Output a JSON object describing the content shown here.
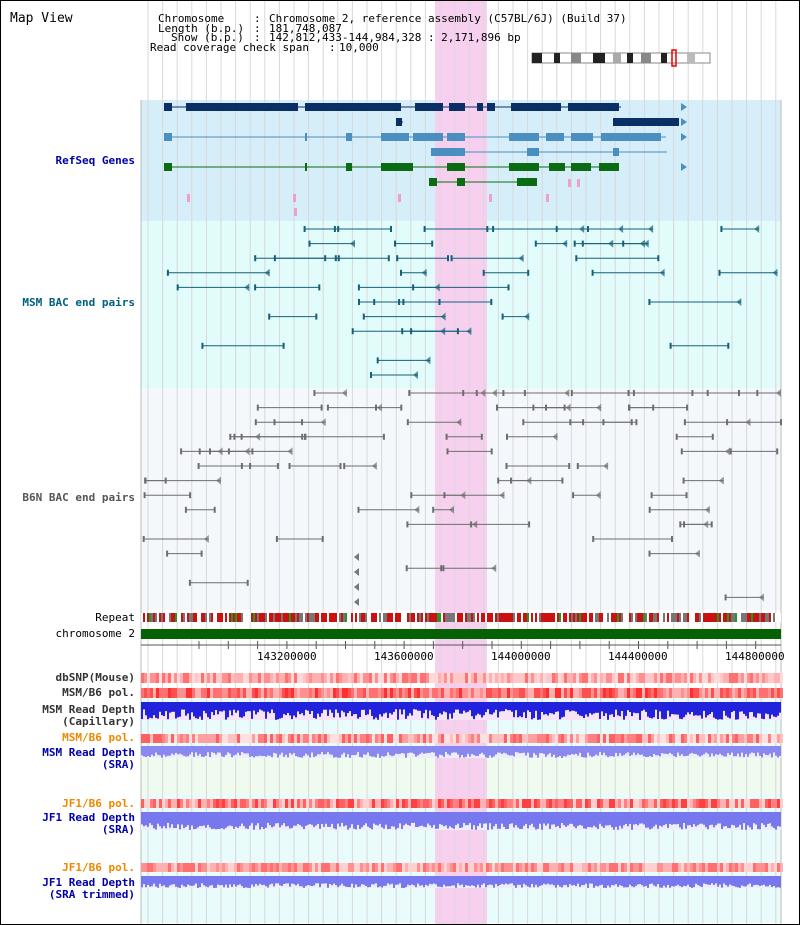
{
  "app": {
    "title": "Map View"
  },
  "header": {
    "chromosome_key": "Chromosome",
    "chromosome_val": "Chromosome 2, reference assembly (C57BL/6J) (Build 37)",
    "length_key": "Length (b.p.)",
    "length_val": "181,748,087",
    "show_key": "Show (b.p.)",
    "show_val": "142,812,433-144,984,328 : 2,171,896 bp",
    "span_key": "Read coverage check span",
    "span_val": "10,000"
  },
  "tracks": {
    "refseq": "RefSeq Genes",
    "msm_bac": "MSM BAC end pairs",
    "b6n_bac": "B6N BAC end pairs",
    "repeat": "Repeat",
    "chromosome": "chromosome 2",
    "dbsnp": "dbSNP(Mouse)",
    "msm_b6_pol_1": "MSM/B6 pol.",
    "msm_read_depth_cap_1": "MSM Read Depth",
    "msm_read_depth_cap_2": "(Capillary)",
    "msm_b6_pol_2": "MSM/B6 pol.",
    "msm_read_depth_sra_1": "MSM Read Depth",
    "msm_read_depth_sra_2": "(SRA)",
    "jf1_b6_pol_1": "JF1/B6 pol.",
    "jf1_read_depth_sra_1": "JF1 Read Depth",
    "jf1_read_depth_sra_2": "(SRA)",
    "jf1_b6_pol_2": "JF1/B6 pol.",
    "jf1_read_depth_trim_1": "JF1 Read Depth",
    "jf1_read_depth_trim_2": "(SRA trimmed)"
  },
  "axis": {
    "ticks": [
      "143200000",
      "143600000",
      "144000000",
      "144400000",
      "144800000"
    ]
  },
  "colors": {
    "refseq_bg": "#d6eefa",
    "msm_bg": "#e2fbfb",
    "b6n_bg": "#f4f7fb",
    "lower_bg": "#e9fbfb",
    "highlight": "#f7d0f0",
    "gene_dark": "#0a2f66",
    "gene_mid": "#4a8fbf",
    "gene_green": "#0b6b12",
    "msm_pair": "#14607a",
    "b6n_pair": "#6e6e6e",
    "chrom_bar": "#066006",
    "label_blue": "#0000aa",
    "label_orange": "#ee8800",
    "label_teal": "#006080"
  }
}
